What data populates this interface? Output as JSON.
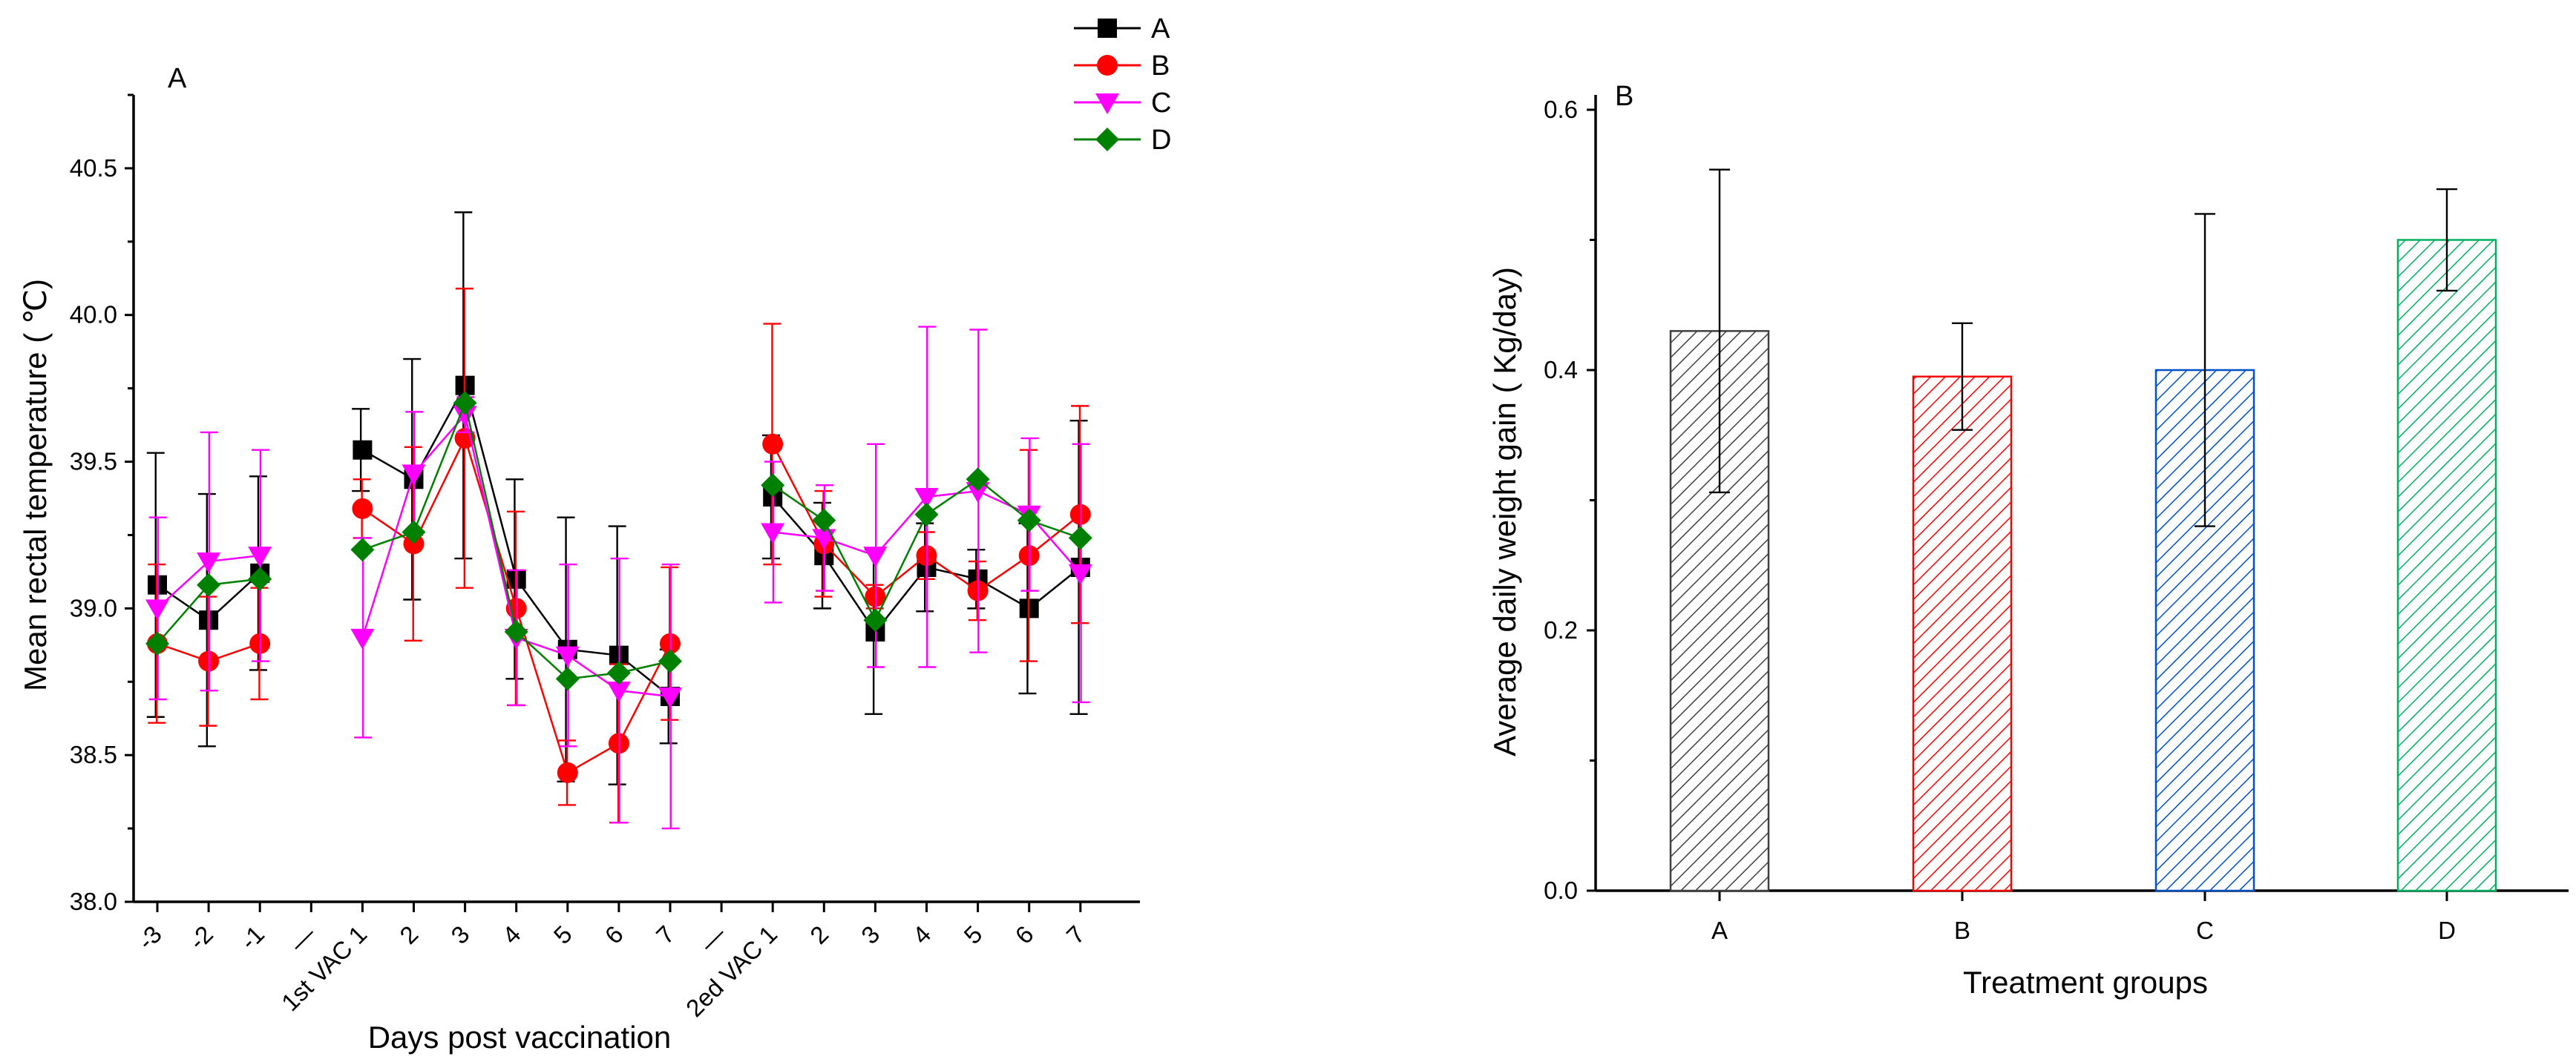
{
  "chart_data": [
    {
      "type": "line",
      "panel_label": "A",
      "xlabel": "Days post vaccination",
      "ylabel": "Mean rectal temperature ( ℃)",
      "ylim": [
        38.0,
        40.75
      ],
      "yticks": [
        "38.0",
        "38.5",
        "39.0",
        "39.5",
        "40.0",
        "40.5"
      ],
      "categories": [
        "-3",
        "-2",
        "-1",
        "—",
        "1st VAC 1",
        "2",
        "3",
        "4",
        "5",
        "6",
        "7",
        "—",
        "2ed VAC 1",
        "2",
        "3",
        "4",
        "5",
        "6",
        "7"
      ],
      "legend_position": "top-right",
      "series": [
        {
          "name": "A",
          "color": "#000000",
          "marker": "square",
          "values": [
            39.08,
            38.96,
            39.12,
            null,
            39.54,
            39.44,
            39.76,
            39.1,
            38.86,
            38.84,
            38.7,
            null,
            39.38,
            39.18,
            38.92,
            39.14,
            39.1,
            39.0,
            39.14
          ],
          "errors": [
            0.45,
            0.43,
            0.33,
            null,
            0.14,
            0.41,
            0.59,
            0.34,
            0.45,
            0.44,
            0.16,
            null,
            0.21,
            0.18,
            0.28,
            0.15,
            0.1,
            0.29,
            0.5
          ]
        },
        {
          "name": "B",
          "color": "#ff0000",
          "marker": "circle",
          "values": [
            38.88,
            38.82,
            38.88,
            null,
            39.34,
            39.22,
            39.58,
            39.0,
            38.44,
            38.54,
            38.88,
            null,
            39.56,
            39.22,
            39.04,
            39.18,
            39.06,
            39.18,
            39.32
          ],
          "errors": [
            0.27,
            0.22,
            0.19,
            null,
            0.1,
            0.33,
            0.51,
            0.33,
            0.11,
            0.27,
            0.26,
            null,
            0.41,
            0.18,
            0.04,
            0.08,
            0.1,
            0.36,
            0.37
          ]
        },
        {
          "name": "C",
          "color": "#ff00ff",
          "marker": "triangle-down",
          "values": [
            39.0,
            39.16,
            39.18,
            null,
            38.9,
            39.46,
            39.66,
            38.9,
            38.84,
            38.72,
            38.7,
            null,
            39.26,
            39.24,
            39.18,
            39.38,
            39.4,
            39.32,
            39.12
          ],
          "errors": [
            0.31,
            0.44,
            0.36,
            null,
            0.34,
            0.21,
            0.06,
            0.23,
            0.31,
            0.45,
            0.45,
            null,
            0.24,
            0.18,
            0.38,
            0.58,
            0.55,
            0.26,
            0.44
          ]
        },
        {
          "name": "D",
          "color": "#008000",
          "marker": "diamond",
          "values": [
            38.88,
            39.08,
            39.1,
            null,
            39.2,
            39.26,
            39.7,
            38.92,
            38.76,
            38.78,
            38.82,
            null,
            39.42,
            39.3,
            38.96,
            39.32,
            39.44,
            39.3,
            39.24
          ],
          "errors": [
            null,
            null,
            null,
            null,
            null,
            null,
            null,
            null,
            null,
            null,
            null,
            null,
            null,
            null,
            null,
            null,
            null,
            null,
            null
          ]
        }
      ]
    },
    {
      "type": "bar",
      "panel_label": "B",
      "xlabel": "Treatment groups",
      "ylabel": "Average daily weight gain ( Kg/day)",
      "ylim": [
        0.0,
        0.6
      ],
      "yticks": [
        "0.0",
        "0.2",
        "0.4",
        "0.6"
      ],
      "categories": [
        "A",
        "B",
        "C",
        "D"
      ],
      "values": [
        0.43,
        0.395,
        0.4,
        0.5
      ],
      "errors": [
        0.124,
        0.041,
        0.12,
        0.039
      ],
      "colors": [
        "#404040",
        "#ff0000",
        "#0050c8",
        "#00b060"
      ]
    }
  ]
}
